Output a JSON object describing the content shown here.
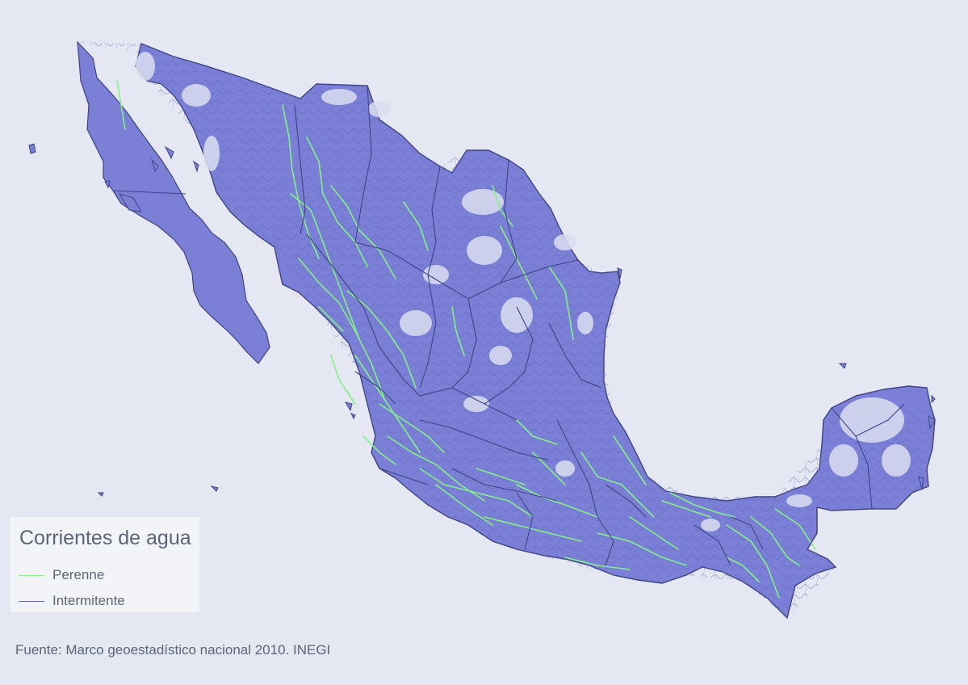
{
  "colors": {
    "background": "#e5e8f2",
    "land": "#7b7fd6",
    "border": "#3e4482",
    "perennial": "#84f08a",
    "intermittent": "#5e64bd",
    "text": "#5b6577"
  },
  "legend": {
    "title": "Corrientes de agua",
    "items": [
      {
        "label": "Perenne",
        "color": "#84f08a"
      },
      {
        "label": "Intermitente",
        "color": "#5e64bd"
      }
    ]
  },
  "source": "Fuente: Marco geoestadístico nacional 2010. INEGI"
}
